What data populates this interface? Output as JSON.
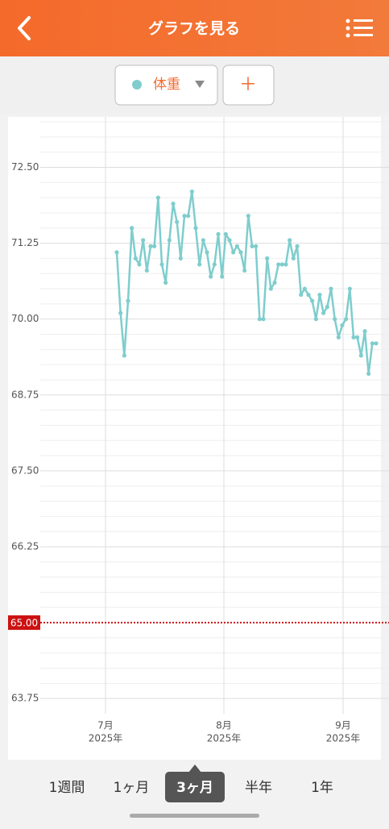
{
  "header": {
    "title": "グラフを見る"
  },
  "selector": {
    "label": "体重",
    "add": "＋"
  },
  "tabs": {
    "items": [
      "1週間",
      "1ヶ月",
      "3ヶ月",
      "半年",
      "1年"
    ],
    "selected": 2
  },
  "chart_data": {
    "type": "line",
    "color": "#7fcdcd",
    "ylim": [
      63.5,
      73.33
    ],
    "yticks": [
      {
        "value": 63.75,
        "label": "63.75"
      },
      {
        "value": 66.25,
        "label": "66.25"
      },
      {
        "value": 67.5,
        "label": "67.50"
      },
      {
        "value": 68.75,
        "label": "68.75"
      },
      {
        "value": 70,
        "label": "70.00"
      },
      {
        "value": 71.25,
        "label": "71.25"
      },
      {
        "value": 72.5,
        "label": "72.50"
      }
    ],
    "minor_yticks": [
      64,
      64.25,
      64.5,
      64.75,
      65.25,
      65.5,
      65.75,
      66,
      66.5,
      66.75,
      67,
      67.25,
      67.75,
      68,
      68.25,
      68.5,
      69,
      69.25,
      69.5,
      69.75,
      70.25,
      70.5,
      70.75,
      71,
      71.5,
      71.75,
      72,
      72.25,
      72.75,
      73,
      73.25
    ],
    "target": {
      "value": 65,
      "label": "65.00",
      "color": "#cc1111"
    },
    "xticks": [
      {
        "month": "7月",
        "year": "2025年"
      },
      {
        "month": "8月",
        "year": "2025年"
      },
      {
        "month": "9月",
        "year": "2025年"
      }
    ],
    "values": [
      71.1,
      70.1,
      69.4,
      70.3,
      71.5,
      71.0,
      70.9,
      71.3,
      70.8,
      71.2,
      71.2,
      72.0,
      70.9,
      70.6,
      71.3,
      71.9,
      71.6,
      71.0,
      71.7,
      71.7,
      72.1,
      71.5,
      70.9,
      71.3,
      71.1,
      70.7,
      70.9,
      71.4,
      70.7,
      71.4,
      71.3,
      71.1,
      71.2,
      71.1,
      70.8,
      71.7,
      71.2,
      71.2,
      70.0,
      70.0,
      71.0,
      70.5,
      70.6,
      70.9,
      70.9,
      70.9,
      71.3,
      71.0,
      71.2,
      70.4,
      70.5,
      70.4,
      70.3,
      70.0,
      70.4,
      70.1,
      70.2,
      70.5,
      70.0,
      69.7,
      69.9,
      70.0,
      70.5,
      69.7,
      69.7,
      69.4,
      69.8,
      69.1,
      69.6,
      69.6
    ]
  }
}
